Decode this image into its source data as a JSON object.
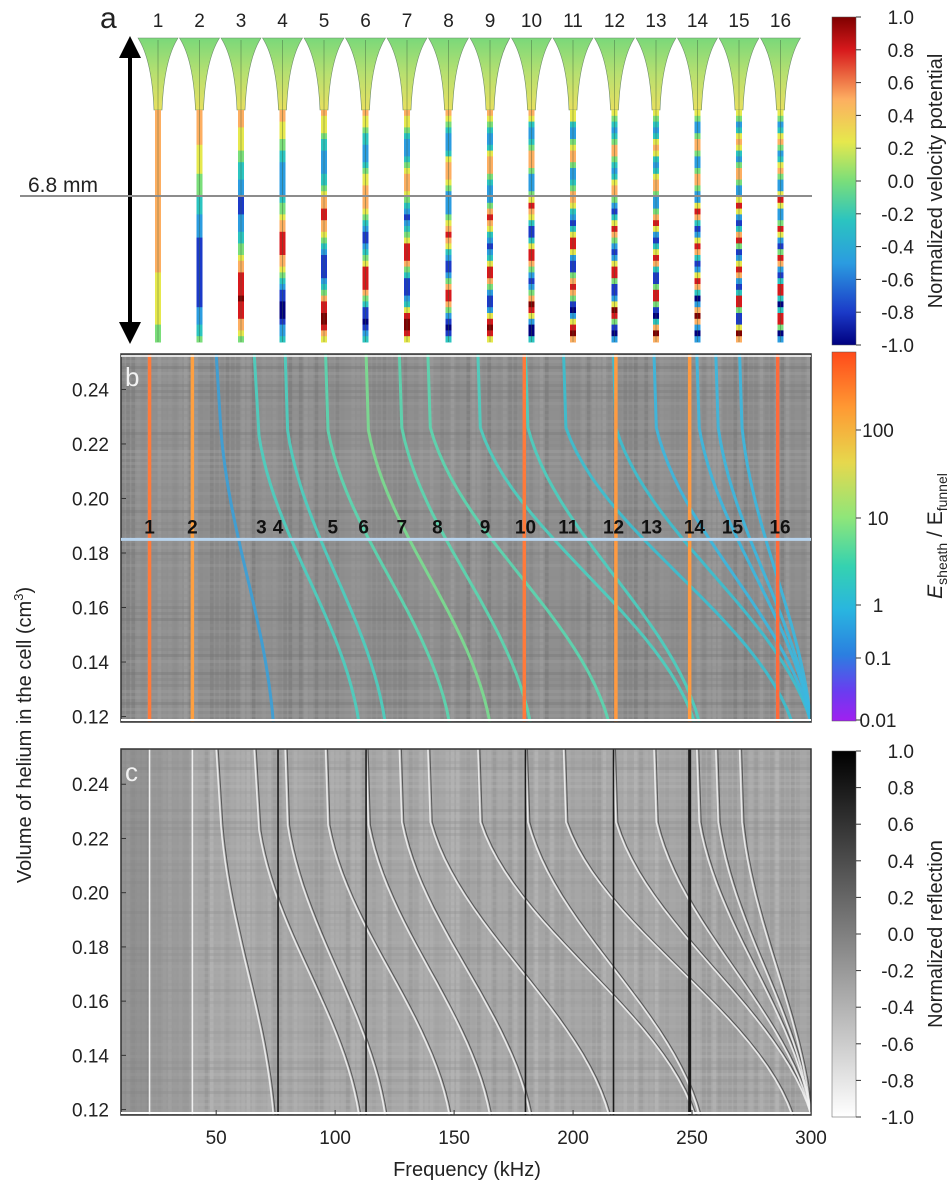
{
  "panels": {
    "a": {
      "letter": "a",
      "mode_numbers": [
        "1",
        "2",
        "3",
        "4",
        "5",
        "6",
        "7",
        "8",
        "9",
        "10",
        "11",
        "12",
        "13",
        "14",
        "15",
        "16"
      ],
      "height_label": "6.8 mm",
      "colorbar": {
        "title": "Normalized velocity potential",
        "ticks": [
          "1.0",
          "0.8",
          "0.6",
          "0.4",
          "0.2",
          "0.0",
          "-0.2",
          "-0.4",
          "-0.6",
          "-0.8",
          "-1.0"
        ],
        "colors": [
          "#7f0000",
          "#d7191c",
          "#f46d43",
          "#fdae61",
          "#fee08b",
          "#b5e06b",
          "#5fd08f",
          "#2bb9c8",
          "#2b7bd8",
          "#1b3ac8",
          "#00007f"
        ]
      }
    },
    "b": {
      "letter": "b",
      "mode_labels": [
        {
          "label": "1",
          "freq": 22
        },
        {
          "label": "2",
          "freq": 40
        },
        {
          "label": "3",
          "freq": 69
        },
        {
          "label": "4",
          "freq": 76
        },
        {
          "label": "5",
          "freq": 99
        },
        {
          "label": "6",
          "freq": 112
        },
        {
          "label": "7",
          "freq": 128
        },
        {
          "label": "8",
          "freq": 143
        },
        {
          "label": "9",
          "freq": 163
        },
        {
          "label": "10",
          "freq": 180
        },
        {
          "label": "11",
          "freq": 198
        },
        {
          "label": "12",
          "freq": 217
        },
        {
          "label": "13",
          "freq": 233
        },
        {
          "label": "14",
          "freq": 251
        },
        {
          "label": "15",
          "freq": 267
        },
        {
          "label": "16",
          "freq": 287
        }
      ],
      "colorbar": {
        "title_main": "E",
        "title_sub1": "sheath",
        "title_mid": " / E",
        "title_sub2": "funnel",
        "ticks": [
          "100",
          "10",
          "1",
          "0.1",
          "0.01"
        ],
        "colors": [
          "#ff4a1a",
          "#ff9933",
          "#e6d84d",
          "#9ee67a",
          "#35d2b0",
          "#29b5e0",
          "#2b7fe0",
          "#6a3cf0",
          "#a020f0"
        ]
      }
    },
    "c": {
      "letter": "c",
      "colorbar": {
        "title": "Normalized reflection",
        "ticks": [
          "1.0",
          "0.8",
          "0.6",
          "0.4",
          "0.2",
          "0.0",
          "-0.2",
          "-0.4",
          "-0.6",
          "-0.8",
          "-1.0"
        ],
        "colors": [
          "#000000",
          "#ffffff"
        ]
      }
    }
  },
  "chart_data": {
    "type": "heatmap",
    "xlabel": "Frequency (kHz)",
    "ylabel": "Volume of helium in the cell (cm",
    "ylabel_sup": "3",
    "ylabel_end": ")",
    "xlim": [
      10,
      300
    ],
    "ylim": [
      0.118,
      0.253
    ],
    "xticks": [
      50,
      100,
      150,
      200,
      250,
      300
    ],
    "xtick_labels": [
      "50",
      "100",
      "150",
      "200",
      "250",
      "300"
    ],
    "yticks": [
      0.12,
      0.14,
      0.16,
      0.18,
      0.2,
      0.22,
      0.24
    ],
    "ytick_labels": [
      "0.12",
      "0.14",
      "0.16",
      "0.18",
      "0.20",
      "0.22",
      "0.24"
    ],
    "reference_volume": 0.185,
    "vertical_resonances": [
      {
        "freq": 22,
        "color": "#ff7a3a"
      },
      {
        "freq": 40,
        "color": "#ffa040"
      },
      {
        "freq": 179.5,
        "color": "#ff7a3a"
      },
      {
        "freq": 218,
        "color": "#ff9a40"
      },
      {
        "freq": 249,
        "color": "#ff9a40"
      },
      {
        "freq": 286,
        "color": "#ff6a3a"
      }
    ],
    "bent_modes": [
      {
        "f_top": 50,
        "f_knee": 52,
        "v_knee": 0.225,
        "f_bottom": 74,
        "color": "#3aa0d8"
      },
      {
        "f_top": 66,
        "f_knee": 68,
        "v_knee": 0.223,
        "f_bottom": 110,
        "color": "#4ad0c0"
      },
      {
        "f_top": 79,
        "f_knee": 80,
        "v_knee": 0.225,
        "f_bottom": 121,
        "color": "#4ad0c0"
      },
      {
        "f_top": 96,
        "f_knee": 97,
        "v_knee": 0.225,
        "f_bottom": 148,
        "color": "#5ad8b0"
      },
      {
        "f_top": 113,
        "f_knee": 114,
        "v_knee": 0.225,
        "f_bottom": 165,
        "color": "#7ade90"
      },
      {
        "f_top": 127,
        "f_knee": 128,
        "v_knee": 0.226,
        "f_bottom": 182,
        "color": "#5ad8b0"
      },
      {
        "f_top": 139,
        "f_knee": 140,
        "v_knee": 0.226,
        "f_bottom": 215,
        "color": "#5ad8b0"
      },
      {
        "f_top": 160,
        "f_knee": 161,
        "v_knee": 0.226,
        "f_bottom": 251,
        "color": "#4ad0c0"
      },
      {
        "f_top": 180,
        "f_knee": 181,
        "v_knee": 0.226,
        "f_bottom": 253,
        "color": "#4ad0c0"
      },
      {
        "f_top": 196,
        "f_knee": 197,
        "v_knee": 0.226,
        "f_bottom": 292,
        "color": "#3ac0d0"
      },
      {
        "f_top": 217,
        "f_knee": 218,
        "v_knee": 0.226,
        "f_bottom": 300,
        "color": "#3ac0d0"
      },
      {
        "f_top": 234,
        "f_knee": 235,
        "v_knee": 0.226,
        "f_bottom": 300,
        "color": "#3ab8e0"
      },
      {
        "f_top": 252,
        "f_knee": 253,
        "v_knee": 0.226,
        "f_bottom": 300,
        "color": "#3ab8e0"
      },
      {
        "f_top": 260,
        "f_knee": 261,
        "v_knee": 0.226,
        "f_bottom": 300,
        "color": "#3ab8e0"
      },
      {
        "f_top": 270,
        "f_knee": 271,
        "v_knee": 0.226,
        "f_bottom": 300,
        "color": "#3ab8e0"
      }
    ]
  }
}
